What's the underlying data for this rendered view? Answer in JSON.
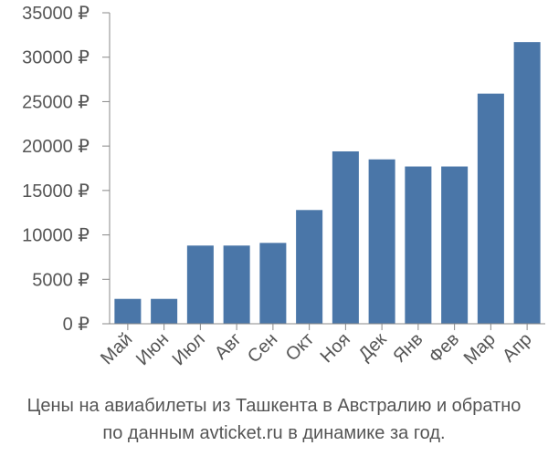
{
  "caption": {
    "line1": "Цены на авиабилеты из Ташкента в Австралию и обратно",
    "line2": "по данным avticket.ru в динамике за год."
  },
  "colors": {
    "bar": "#4a76a8",
    "axis": "#888888",
    "text": "#555555",
    "background": "#ffffff"
  },
  "chart_data": {
    "type": "bar",
    "categories": [
      "Май",
      "Июн",
      "Июл",
      "Авг",
      "Сен",
      "Окт",
      "Ноя",
      "Дек",
      "Янв",
      "Фев",
      "Мар",
      "Апр"
    ],
    "values": [
      2800,
      2800,
      8800,
      8800,
      9100,
      12800,
      19400,
      18500,
      17700,
      17700,
      25900,
      31700
    ],
    "ylim": [
      0,
      35000
    ],
    "yticks": [
      0,
      5000,
      10000,
      15000,
      20000,
      25000,
      30000,
      35000
    ],
    "ytick_labels": [
      "0 ₽",
      "5000 ₽",
      "10000 ₽",
      "15000 ₽",
      "20000 ₽",
      "25000 ₽",
      "30000 ₽",
      "35000 ₽"
    ],
    "grid": false,
    "legend": "none"
  }
}
